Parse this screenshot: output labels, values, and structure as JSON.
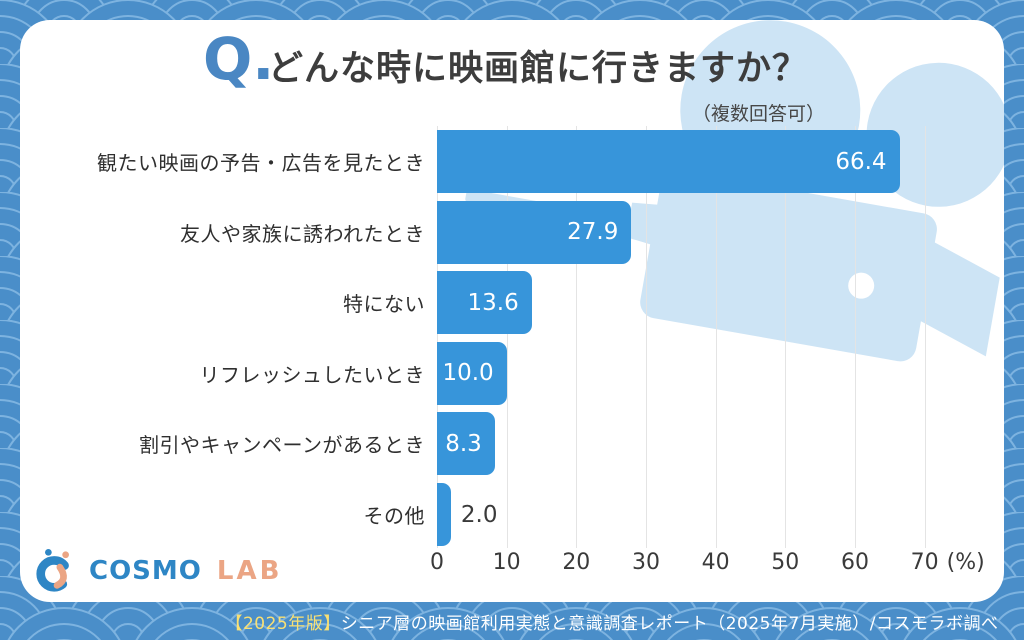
{
  "header": {
    "q_mark": "Q.",
    "title": "どんな時に映画館に行きますか？",
    "note": "（複数回答可）"
  },
  "chart_data": {
    "type": "bar",
    "orientation": "horizontal",
    "title": "どんな時に映画館に行きますか？",
    "subtitle": "（複数回答可）",
    "categories": [
      "観たい映画の予告・広告を見たとき",
      "友人や家族に誘われたとき",
      "特にない",
      "リフレッシュしたいとき",
      "割引やキャンペーンがあるとき",
      "その他"
    ],
    "values": [
      66.4,
      27.9,
      13.6,
      10.0,
      8.3,
      2.0
    ],
    "value_labels": [
      "66.4",
      "27.9",
      "13.6",
      "10.0",
      "8.3",
      "2.0"
    ],
    "xlabel": "",
    "ylabel": "",
    "xlim": [
      0,
      70
    ],
    "ticks": [
      0,
      10,
      20,
      30,
      40,
      50,
      60,
      70
    ],
    "unit_label": "(%)",
    "grid": true,
    "legend": false,
    "bar_color": "#3795da"
  },
  "logo": {
    "brand_primary": "COSMO",
    "brand_secondary": "LAB"
  },
  "footer": {
    "highlight": "【2025年版】",
    "text": "シニア層の映画館利用実態と意識調査レポート（2025年7月実施）/コスモラボ調べ"
  },
  "colors": {
    "accent_bar": "#3795da",
    "q_mark": "#4a87c3",
    "background_pattern": "#4a8ec9",
    "pattern_line": "#7db3e0",
    "watermark": "#cde4f5",
    "footer_highlight": "#f9e074"
  }
}
